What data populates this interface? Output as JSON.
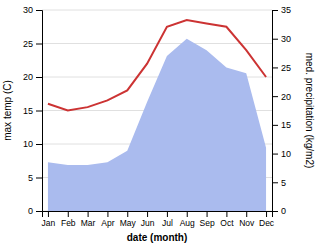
{
  "chart_data": {
    "type": "line",
    "categories": [
      "Jan",
      "Feb",
      "Mar",
      "Apr",
      "May",
      "Jun",
      "Jul",
      "Aug",
      "Sep",
      "Oct",
      "Nov",
      "Dec"
    ],
    "series": [
      {
        "type": "area",
        "axis": "y2",
        "color": "#aabbee",
        "values": [
          8.5,
          8.0,
          8.0,
          8.5,
          10.5,
          19.0,
          27.0,
          30.0,
          28.0,
          25.0,
          24.0,
          11.0
        ]
      },
      {
        "type": "line",
        "color": "#cc3333",
        "values": [
          16.0,
          15.0,
          15.5,
          16.5,
          18.0,
          22.0,
          27.5,
          28.5,
          28.0,
          27.5,
          24.0,
          20.0
        ]
      }
    ],
    "xlabel": "date (month)",
    "ylabel": "max temp (C)",
    "y2label": "med. precipitation (kg/m2)",
    "ylim": [
      0,
      30
    ],
    "yticks": [
      0,
      5,
      10,
      15,
      20,
      25,
      30
    ],
    "y2lim": [
      0,
      35
    ],
    "y2ticks": [
      0,
      5,
      10,
      15,
      20,
      25,
      30,
      35
    ],
    "grid": true
  }
}
